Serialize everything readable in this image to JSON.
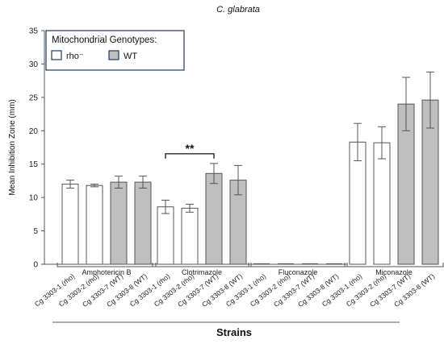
{
  "chart_data": {
    "type": "bar",
    "title": "C. glabrata",
    "xlabel": "Strains",
    "ylabel": "Mean Inhibition Zone (mm)",
    "ylim": [
      0,
      35
    ],
    "yticks": [
      0,
      5,
      10,
      15,
      20,
      25,
      30,
      35
    ],
    "legend": {
      "title": "Mitochondrial Genotypes:",
      "placement": "top-left",
      "items": [
        {
          "label": "rho⁻",
          "color": "#ffffff"
        },
        {
          "label": "WT",
          "color": "#bfbfbf"
        }
      ]
    },
    "groups": [
      {
        "name": "Amphotericin B",
        "categories": [
          "Cg 3303-1 (rho)",
          "Cg 3303-2 (rho)",
          "Cg 3303-7 (WT)",
          "Cg 3303-8 (WT)"
        ],
        "genotype": [
          "rho",
          "rho",
          "WT",
          "WT"
        ],
        "values": [
          12.0,
          11.8,
          12.3,
          12.3
        ],
        "error": [
          0.6,
          0.2,
          0.9,
          0.9
        ]
      },
      {
        "name": "Clotrimazole",
        "categories": [
          "Cg 3303-1 (rho)",
          "Cg 3303-2 (rho)",
          "Cg 3303-7 (WT)",
          "Cg 3303-8 (WT)"
        ],
        "genotype": [
          "rho",
          "rho",
          "WT",
          "WT"
        ],
        "values": [
          8.6,
          8.4,
          13.6,
          12.6
        ],
        "error": [
          1.0,
          0.6,
          1.5,
          2.2
        ]
      },
      {
        "name": "Fluconazole",
        "categories": [
          "Cg 3303-1 (rho)",
          "Cg 3303-2 (rho)",
          "Cg 3303-7 (WT)",
          "Cg 3303-8 (WT)"
        ],
        "genotype": [
          "rho",
          "rho",
          "WT",
          "WT"
        ],
        "values": [
          0,
          0,
          0,
          0
        ],
        "error": [
          0,
          0,
          0,
          0
        ]
      },
      {
        "name": "Miconazole",
        "categories": [
          "Cg 3303-1 (rho)",
          "Cg 3303-2 (rho)",
          "Cg 3303-7 (WT)",
          "Cg 3303-8 (WT)"
        ],
        "genotype": [
          "rho",
          "rho",
          "WT",
          "WT"
        ],
        "values": [
          18.3,
          18.2,
          24.0,
          24.6
        ],
        "error": [
          2.8,
          2.4,
          4.0,
          4.2
        ]
      }
    ],
    "annotations": [
      {
        "text": "**",
        "group": 1,
        "from": 0,
        "to": 2
      }
    ],
    "colors": {
      "rho": "#ffffff",
      "WT": "#bfbfbf",
      "edge": "#555555"
    }
  }
}
